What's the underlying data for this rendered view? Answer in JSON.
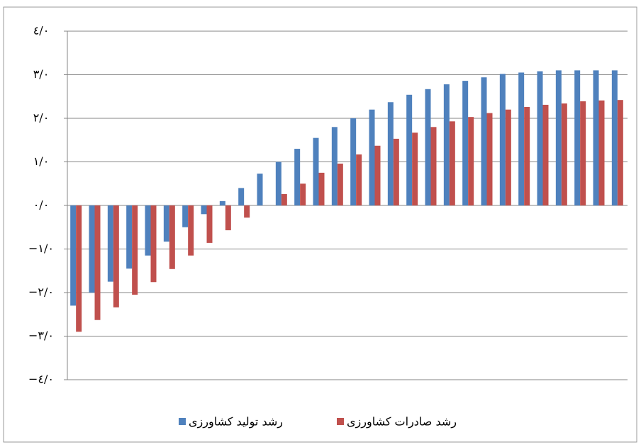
{
  "chart_data": {
    "type": "bar",
    "categories": [
      null,
      null,
      null,
      null,
      null,
      null,
      null,
      null,
      null,
      null,
      null,
      null,
      null,
      null,
      null,
      null,
      null,
      null,
      null,
      null,
      null,
      null,
      null,
      null,
      null,
      null,
      null,
      null,
      null,
      null
    ],
    "series": [
      {
        "name": "رشد تولید کشاورزی",
        "color": "#4f81bd",
        "values": [
          -2.3,
          -2.0,
          -1.75,
          -1.45,
          -1.15,
          -0.83,
          -0.5,
          -0.2,
          0.1,
          0.4,
          0.73,
          1.0,
          1.3,
          1.55,
          1.8,
          2.0,
          2.2,
          2.37,
          2.54,
          2.67,
          2.78,
          2.86,
          2.94,
          3.02,
          3.05,
          3.08,
          3.1,
          3.1,
          3.1,
          3.1
        ]
      },
      {
        "name": "رشد صادرات کشاورزی",
        "color": "#c0504d",
        "values": [
          -2.9,
          -2.63,
          -2.34,
          -2.05,
          -1.76,
          -1.46,
          -1.15,
          -0.86,
          -0.57,
          -0.28,
          0,
          0.26,
          0.5,
          0.75,
          0.96,
          1.17,
          1.37,
          1.53,
          1.67,
          1.8,
          1.93,
          2.03,
          2.12,
          2.2,
          2.26,
          2.31,
          2.34,
          2.39,
          2.41,
          2.42
        ]
      }
    ],
    "ylim": [
      -4,
      4
    ],
    "yticks": [
      {
        "value": -4,
        "label": "−٤/٠"
      },
      {
        "value": -3,
        "label": "−٣/٠"
      },
      {
        "value": -2,
        "label": "−٢/٠"
      },
      {
        "value": -1,
        "label": "−١/٠"
      },
      {
        "value": 0,
        "label": "٠/٠"
      },
      {
        "value": 1,
        "label": "١/٠"
      },
      {
        "value": 2,
        "label": "٢/٠"
      },
      {
        "value": 3,
        "label": "٣/٠"
      },
      {
        "value": 4,
        "label": "٤/٠"
      }
    ],
    "grid": true,
    "legend": "bottom"
  }
}
